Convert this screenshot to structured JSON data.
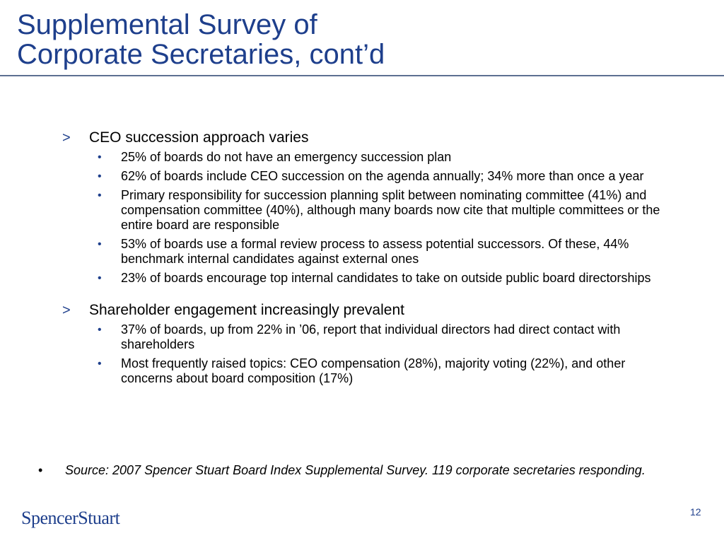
{
  "slide": {
    "title_line1": "Supplemental Survey of",
    "title_line2": "Corporate Secretaries, cont’d",
    "sections": [
      {
        "heading": "CEO succession approach varies",
        "bullets": [
          "25% of boards do not have an emergency succession plan",
          "62% of boards include CEO succession on the agenda annually; 34% more than once a year",
          "Primary responsibility for succession planning split between nominating committee (41%) and compensation committee (40%), although many boards now cite that multiple committees or the entire board are responsible",
          "53% of boards use a formal review process to assess potential successors. Of these, 44% benchmark internal candidates against external ones",
          "23% of boards encourage top internal candidates to take on outside public board directorships"
        ]
      },
      {
        "heading": "Shareholder engagement increasingly prevalent",
        "bullets": [
          "37% of boards, up from 22% in ’06, report that individual directors had direct contact with shareholders",
          "Most frequently raised topics: CEO compensation (28%), majority voting (22%), and other concerns about board composition (17%)"
        ]
      }
    ],
    "source_note": "Source: 2007 Spencer Stuart Board Index Supplemental Survey. 119 corporate secretaries responding.",
    "logo_text": "SpencerStuart",
    "page_number": "12",
    "arrow_glyph": ">",
    "bullet_glyph": "•"
  }
}
